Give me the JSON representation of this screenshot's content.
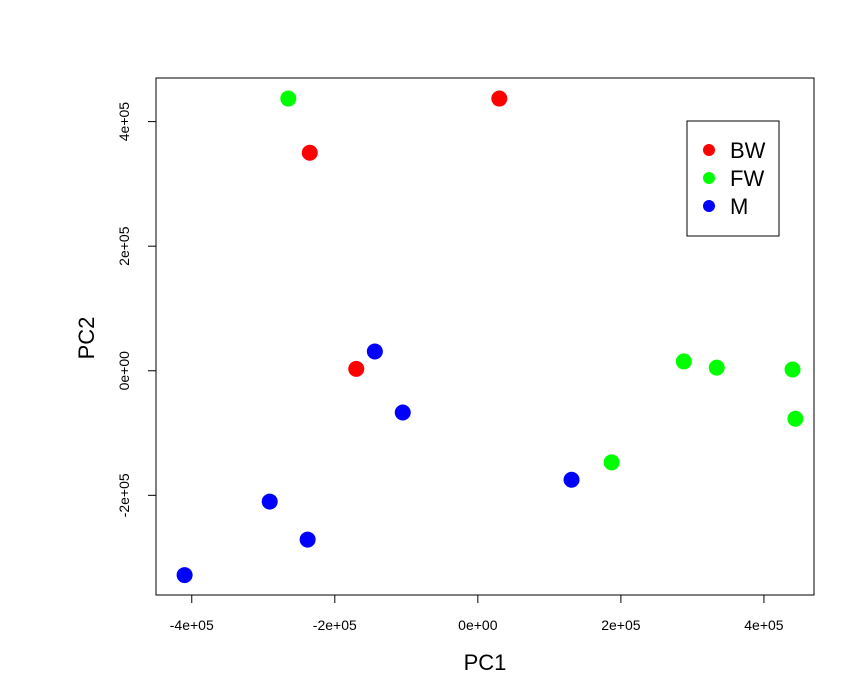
{
  "chart_data": {
    "type": "scatter",
    "title": "",
    "xlabel": "PC1",
    "ylabel": "PC2",
    "xlim": [
      -450000,
      470000
    ],
    "ylim": [
      -360000,
      470000
    ],
    "x_ticks": [
      -400000,
      -200000,
      0,
      200000,
      400000
    ],
    "x_tick_labels": [
      "-4e+05",
      "-2e+05",
      "0e+00",
      "2e+05",
      "4e+05"
    ],
    "y_ticks": [
      -200000,
      0,
      200000,
      400000
    ],
    "y_tick_labels": [
      "-2e+05",
      "0e+00",
      "2e+05",
      "4e+05"
    ],
    "grid": false,
    "legend_position": "top-right",
    "series": [
      {
        "name": "BW",
        "color": "#ff0000",
        "points": [
          {
            "x": -235000,
            "y": 350000
          },
          {
            "x": 30000,
            "y": 437000
          },
          {
            "x": -170000,
            "y": 3000
          }
        ]
      },
      {
        "name": "FW",
        "color": "#00ff00",
        "points": [
          {
            "x": -265000,
            "y": 437000
          },
          {
            "x": 288000,
            "y": 15000
          },
          {
            "x": 334000,
            "y": 5000
          },
          {
            "x": 440000,
            "y": 2000
          },
          {
            "x": 444000,
            "y": -77000
          },
          {
            "x": 187000,
            "y": -147000
          }
        ]
      },
      {
        "name": "M",
        "color": "#0000ff",
        "points": [
          {
            "x": -144000,
            "y": 31000
          },
          {
            "x": -105000,
            "y": -67000
          },
          {
            "x": 131000,
            "y": -175000
          },
          {
            "x": -291000,
            "y": -210000
          },
          {
            "x": -238000,
            "y": -271000
          },
          {
            "x": -410000,
            "y": -328000
          }
        ]
      }
    ]
  }
}
